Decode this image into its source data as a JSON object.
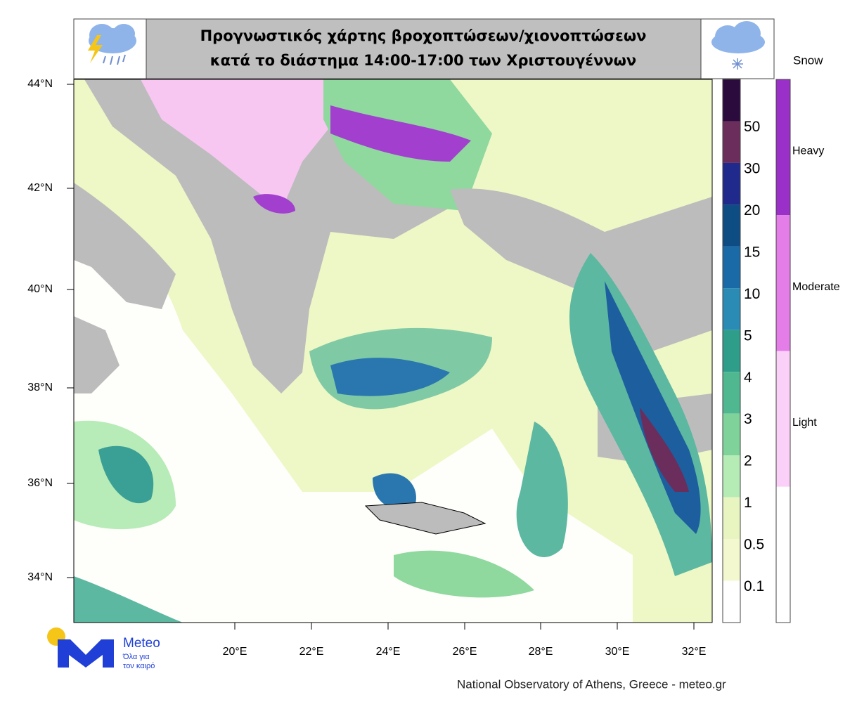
{
  "header": {
    "title_lines": [
      "Προγνωστικός χάρτης βροχοπτώσεων/χιονοπτώσεων",
      "κατά το διάστημα 14:00-17:00 των Χριστουγέννων"
    ]
  },
  "map": {
    "lat_labels": [
      "44°N",
      "42°N",
      "40°N",
      "38°N",
      "36°N",
      "34°N"
    ],
    "lon_labels": [
      "20°E",
      "22°E",
      "24°E",
      "26°E",
      "28°E",
      "30°E",
      "32°E"
    ]
  },
  "legend": {
    "precip_labels": [
      "50",
      "30",
      "20",
      "15",
      "10",
      "5",
      "4",
      "3",
      "2",
      "1",
      "0.5",
      "0.1"
    ],
    "snow_title": "Snow",
    "snow_labels": [
      "Heavy",
      "Moderate",
      "Light"
    ]
  },
  "logo": {
    "name": "Meteo",
    "tagline_lines": [
      "Όλα για",
      "τον καιρό"
    ]
  },
  "footer": "National Observatory of Athens, Greece - meteo.gr"
}
